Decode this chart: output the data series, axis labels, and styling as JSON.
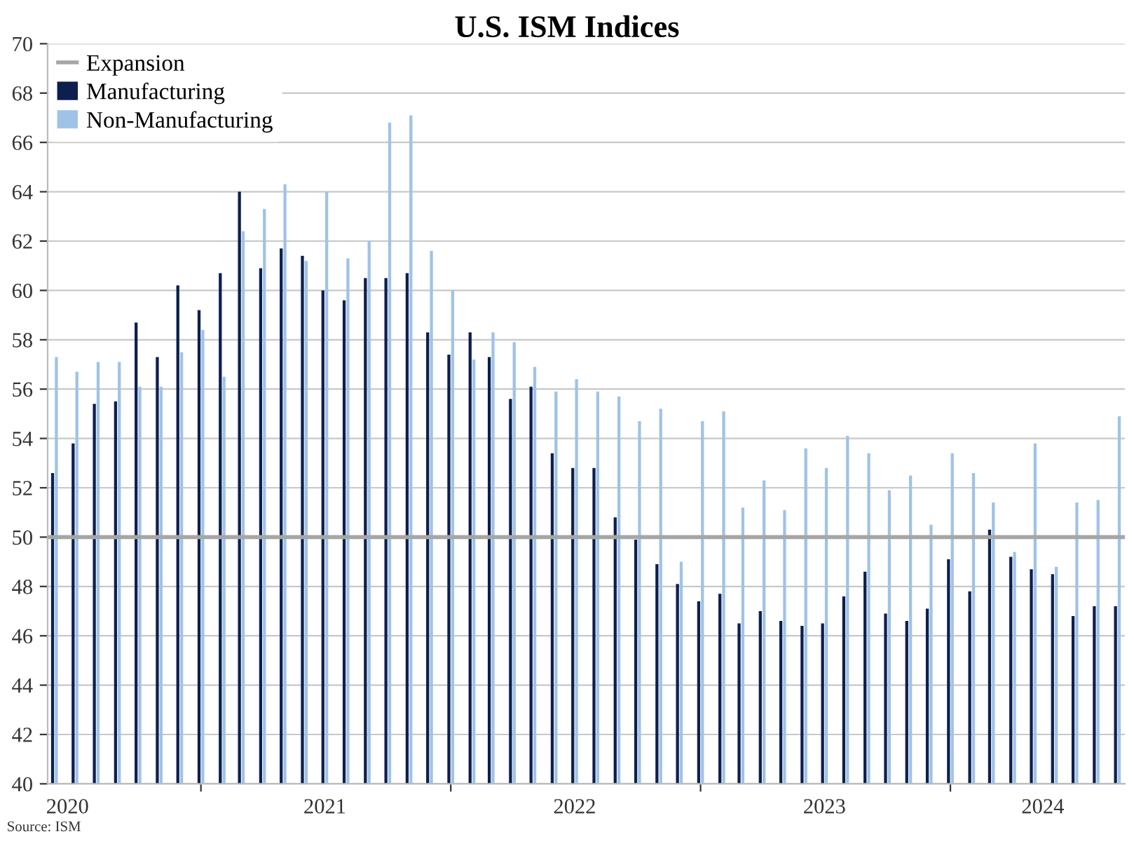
{
  "chart_data": {
    "type": "bar",
    "title": "U.S. ISM Indices",
    "x": [
      "2020-06",
      "2020-07",
      "2020-08",
      "2020-09",
      "2020-10",
      "2020-11",
      "2020-12",
      "2021-01",
      "2021-02",
      "2021-03",
      "2021-04",
      "2021-05",
      "2021-06",
      "2021-07",
      "2021-08",
      "2021-09",
      "2021-10",
      "2021-11",
      "2021-12",
      "2022-01",
      "2022-02",
      "2022-03",
      "2022-04",
      "2022-05",
      "2022-06",
      "2022-07",
      "2022-08",
      "2022-09",
      "2022-10",
      "2022-11",
      "2022-12",
      "2023-01",
      "2023-02",
      "2023-03",
      "2023-04",
      "2023-05",
      "2023-06",
      "2023-07",
      "2023-08",
      "2023-09",
      "2023-10",
      "2023-11",
      "2023-12",
      "2024-01",
      "2024-02",
      "2024-03",
      "2024-04",
      "2024-05",
      "2024-06",
      "2024-07",
      "2024-08",
      "2024-09"
    ],
    "series": [
      {
        "name": "Manufacturing",
        "color": "#0d1f4f",
        "values": [
          52.6,
          53.8,
          55.4,
          55.5,
          58.7,
          57.3,
          60.2,
          59.2,
          60.7,
          64.0,
          60.9,
          61.7,
          61.4,
          60.0,
          59.6,
          60.5,
          60.5,
          60.7,
          58.3,
          57.4,
          58.3,
          57.3,
          55.6,
          56.1,
          53.4,
          52.8,
          52.8,
          50.8,
          49.9,
          48.9,
          48.1,
          47.4,
          47.7,
          46.5,
          47.0,
          46.6,
          46.4,
          46.5,
          47.6,
          48.6,
          46.9,
          46.6,
          47.1,
          49.1,
          47.8,
          50.3,
          49.2,
          48.7,
          48.5,
          46.8,
          47.2,
          47.2
        ]
      },
      {
        "name": "Non-Manufacturing",
        "color": "#9fc3e6",
        "values": [
          57.3,
          56.7,
          57.1,
          57.1,
          56.1,
          56.1,
          57.5,
          58.4,
          56.5,
          62.4,
          63.3,
          64.3,
          61.2,
          64.0,
          61.3,
          62.0,
          66.8,
          67.1,
          61.6,
          60.0,
          57.2,
          58.3,
          57.9,
          56.9,
          55.9,
          56.4,
          55.9,
          55.7,
          54.7,
          55.2,
          49.0,
          54.7,
          55.1,
          51.2,
          52.3,
          51.1,
          53.6,
          52.8,
          54.1,
          53.4,
          51.9,
          52.5,
          50.5,
          53.4,
          52.6,
          51.4,
          49.4,
          53.8,
          48.8,
          51.4,
          51.5,
          54.9
        ]
      }
    ],
    "ref_lines": [
      {
        "axis": "y",
        "value": 50,
        "label": "Expansion",
        "color": "#a6a6a6"
      }
    ],
    "xlim": [
      "2020-05-22",
      "2024-09-12"
    ],
    "xticks": [
      {
        "value": "2020-06-20",
        "label": "2020"
      },
      {
        "value": "2021-01-01",
        "label": null
      },
      {
        "value": "2021-07-01",
        "label": "2021"
      },
      {
        "value": "2022-01-01",
        "label": null
      },
      {
        "value": "2022-07-01",
        "label": "2022"
      },
      {
        "value": "2023-01-01",
        "label": null
      },
      {
        "value": "2023-07-01",
        "label": "2023"
      },
      {
        "value": "2024-01-01",
        "label": null
      },
      {
        "value": "2024-05-15",
        "label": "2024"
      }
    ],
    "ylim": [
      40,
      70
    ],
    "yticks": [
      40,
      42,
      44,
      46,
      48,
      50,
      52,
      54,
      56,
      58,
      60,
      62,
      64,
      66,
      68,
      70
    ],
    "grid": "y",
    "legend": "top left",
    "annotations": [
      "Source: ISM"
    ]
  }
}
